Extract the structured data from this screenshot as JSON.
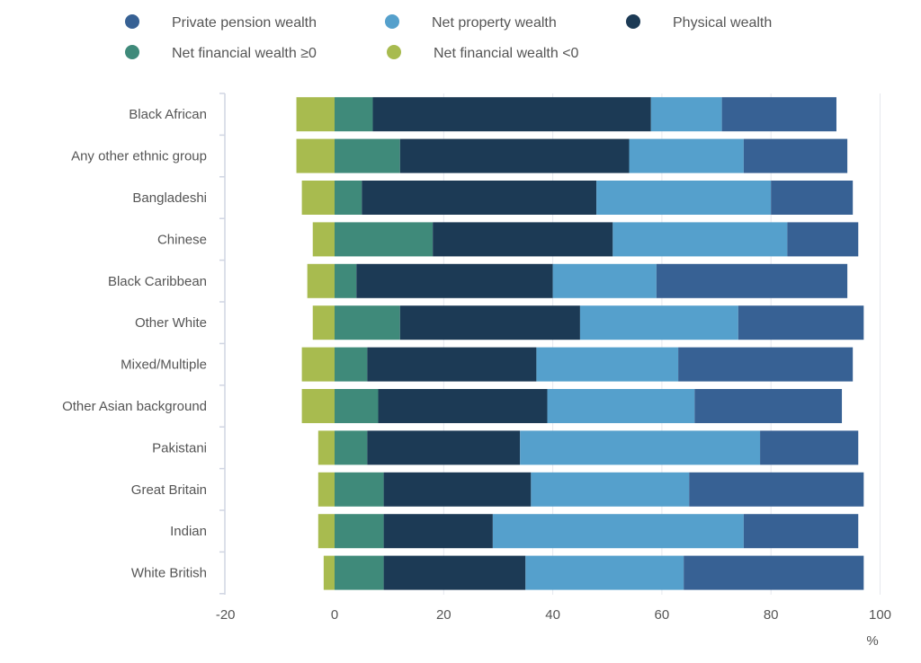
{
  "chart_data": {
    "type": "bar",
    "orientation": "horizontal",
    "stacked": true,
    "unit": "%",
    "xlim": [
      -20,
      100
    ],
    "xticks": [
      "-20",
      "0",
      "20",
      "40",
      "60",
      "80",
      "100"
    ],
    "xtick_values": [
      -20,
      0,
      20,
      40,
      60,
      80,
      100
    ],
    "grid": true,
    "legend_position": "top",
    "categories": [
      "Black African",
      "Any other ethnic group",
      "Bangladeshi",
      "Chinese",
      "Black Caribbean",
      "Other White",
      "Mixed/Multiple",
      "Other Asian background",
      "Pakistani",
      "Great Britain",
      "Indian",
      "White British"
    ],
    "series": [
      {
        "name": "Net financial wealth <0",
        "color": "#a8bb4f",
        "values": [
          -7,
          -7,
          -6,
          -4,
          -5,
          -4,
          -6,
          -6,
          -3,
          -3,
          -3,
          -2
        ]
      },
      {
        "name": "Net financial wealth ≥0",
        "color": "#3f8a7a",
        "values": [
          7,
          12,
          5,
          18,
          4,
          12,
          6,
          8,
          6,
          9,
          9,
          9
        ]
      },
      {
        "name": "Physical wealth",
        "color": "#1c3a55",
        "values": [
          51,
          42,
          43,
          33,
          36,
          33,
          31,
          31,
          28,
          27,
          20,
          26
        ]
      },
      {
        "name": "Net property wealth",
        "color": "#55a0cc",
        "values": [
          13,
          21,
          32,
          32,
          19,
          29,
          26,
          27,
          44,
          29,
          46,
          29
        ]
      },
      {
        "name": "Private pension wealth",
        "color": "#376194",
        "values": [
          21,
          19,
          15,
          13,
          35,
          23,
          32,
          27,
          18,
          32,
          21,
          33
        ]
      }
    ],
    "legend": [
      {
        "name": "Private pension wealth",
        "color": "#376194"
      },
      {
        "name": "Net property wealth",
        "color": "#55a0cc"
      },
      {
        "name": "Physical wealth",
        "color": "#1c3a55"
      },
      {
        "name": "Net financial wealth ≥0",
        "color": "#3f8a7a"
      },
      {
        "name": "Net financial wealth <0",
        "color": "#a8bb4f"
      }
    ]
  }
}
